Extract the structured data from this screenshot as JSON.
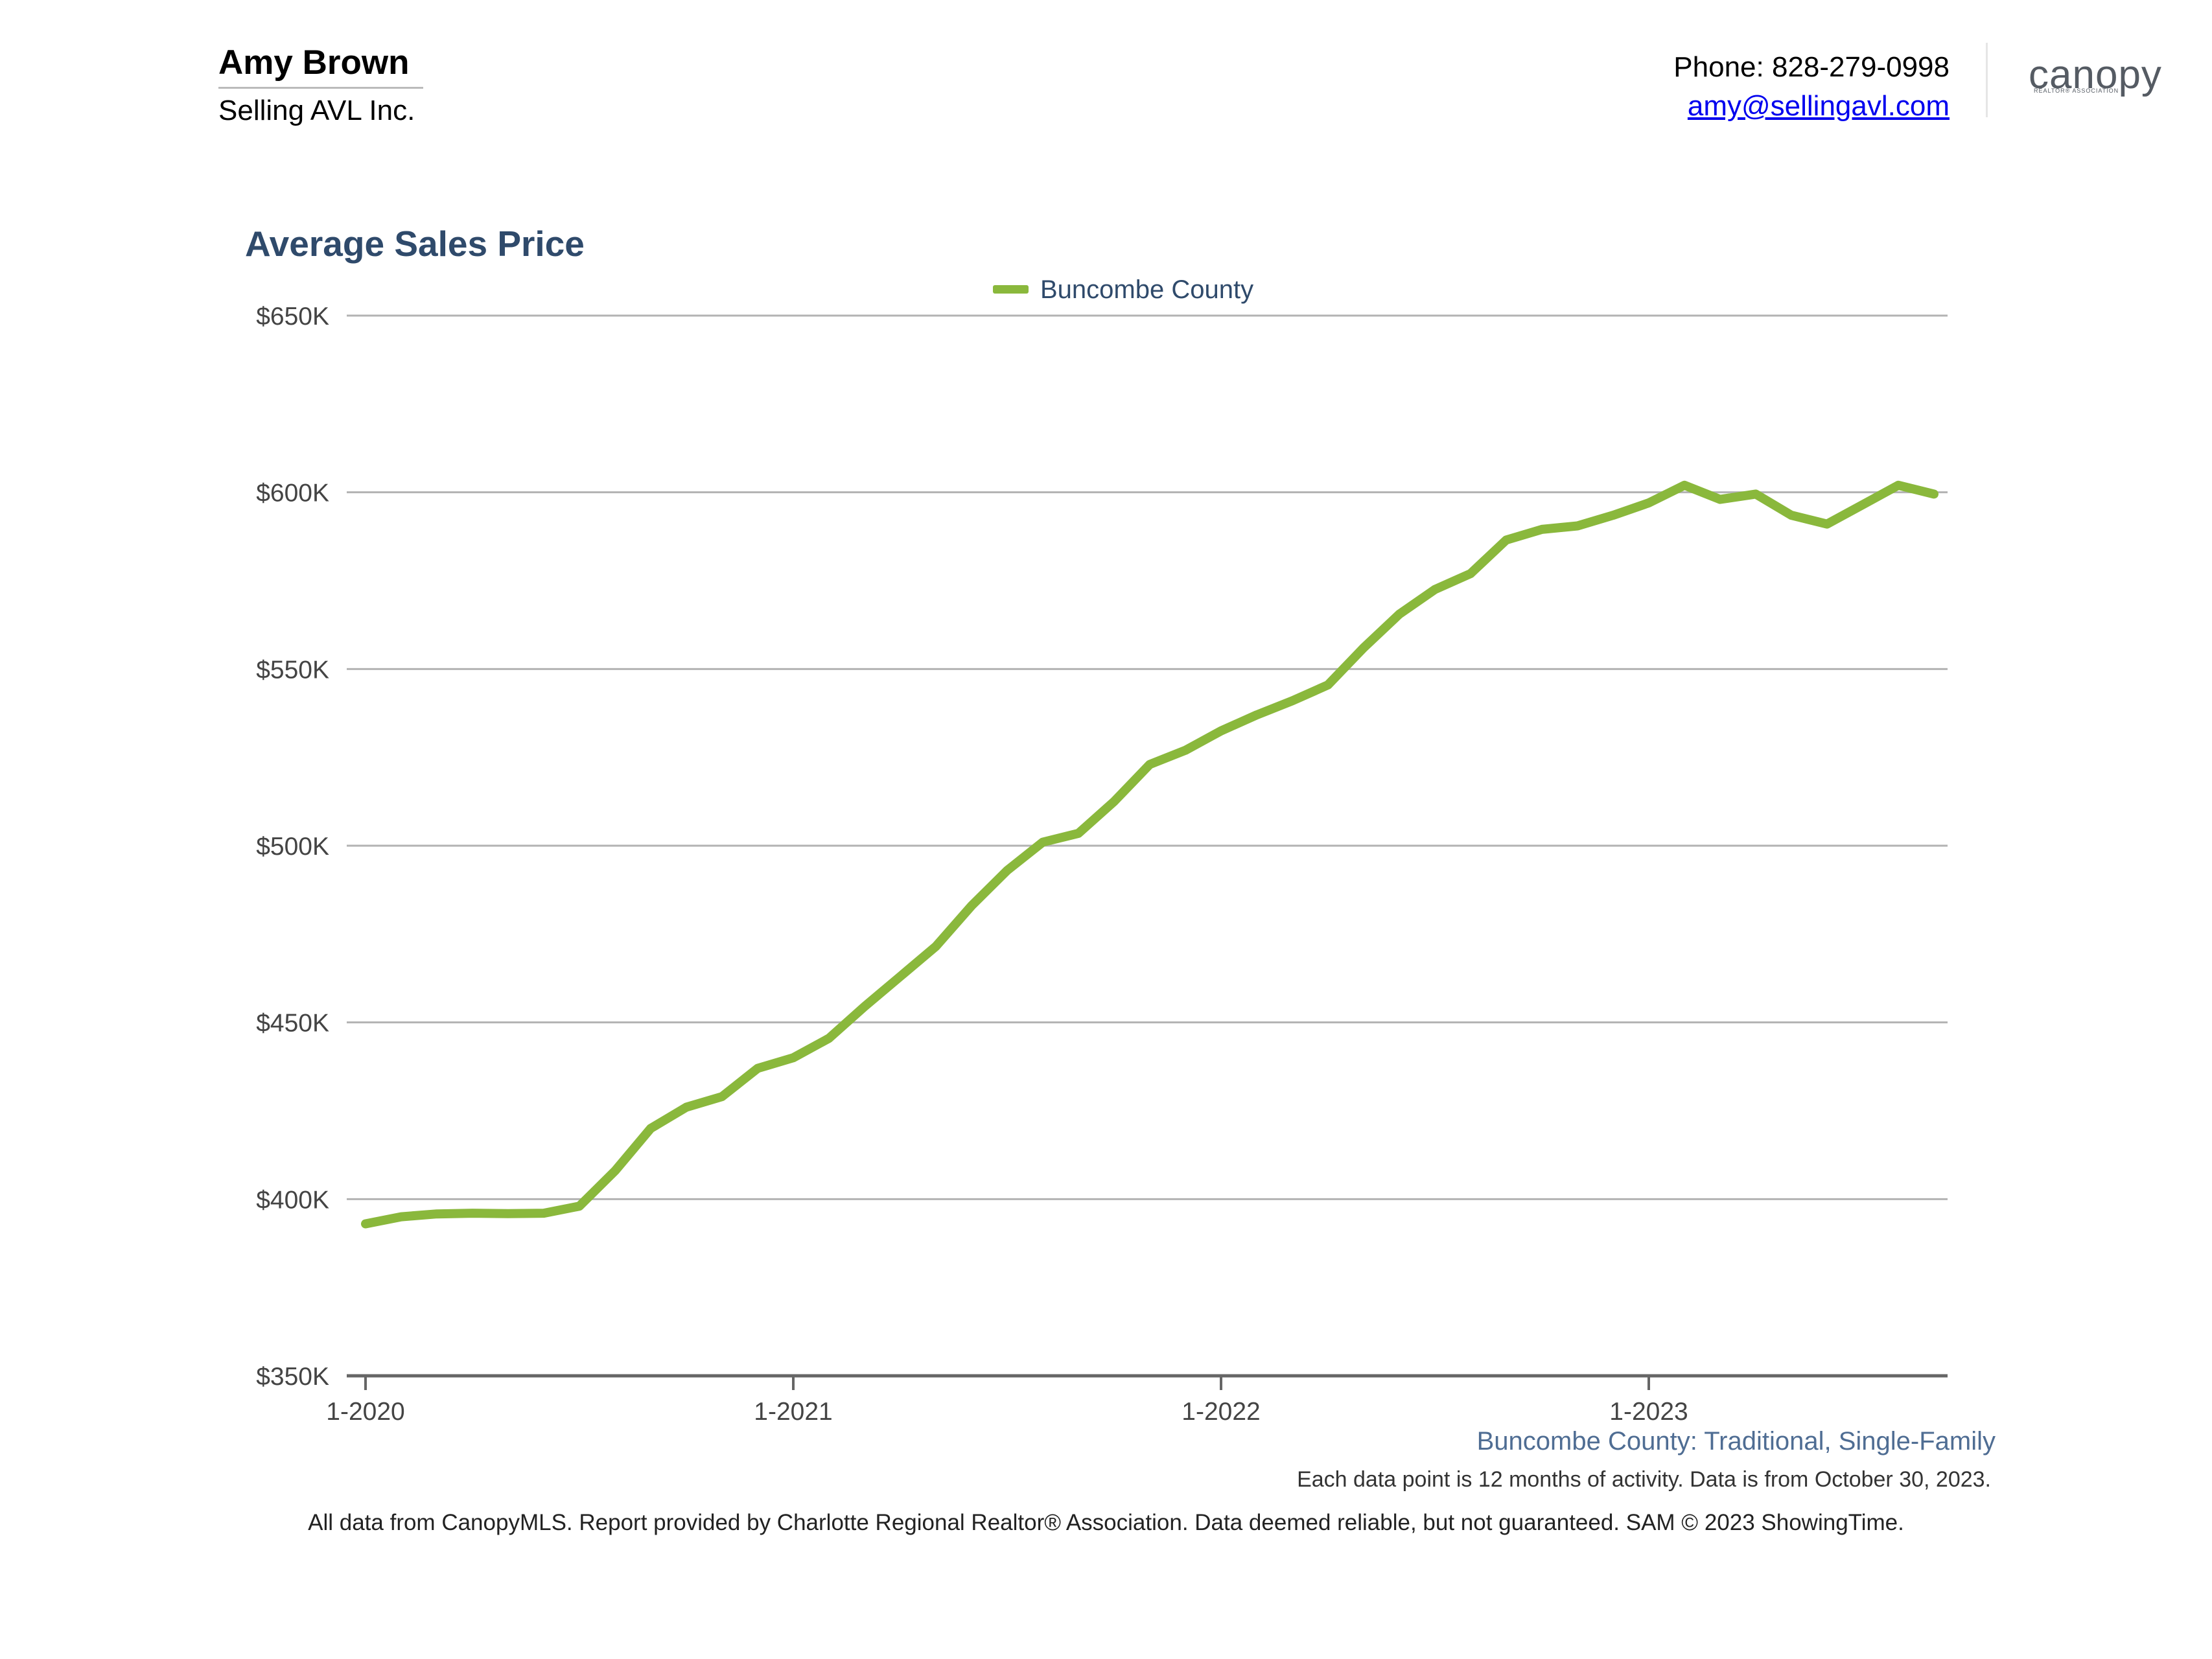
{
  "header": {
    "agent_name": "Amy Brown",
    "company": "Selling AVL Inc.",
    "phone": "Phone: 828-279-0998",
    "email": "amy@sellingavl.com",
    "logo_text": "canopy",
    "logo_subtext": "REALTOR® ASSOCIATION"
  },
  "chart_data": {
    "type": "line",
    "title": "Average Sales Price",
    "xlabel": "",
    "ylabel": "",
    "ylim": [
      350000,
      650000
    ],
    "y_ticks": [
      350000,
      400000,
      450000,
      500000,
      550000,
      600000,
      650000
    ],
    "y_tick_labels": [
      "$350K",
      "$400K",
      "$450K",
      "$500K",
      "$550K",
      "$600K",
      "$650K"
    ],
    "x_ticks": [
      "2020-01",
      "2021-01",
      "2022-01",
      "2023-01"
    ],
    "x_tick_labels": [
      "1-2020",
      "1-2021",
      "1-2022",
      "1-2023"
    ],
    "x": [
      "2020-01",
      "2020-02",
      "2020-03",
      "2020-04",
      "2020-05",
      "2020-06",
      "2020-07",
      "2020-08",
      "2020-09",
      "2020-10",
      "2020-11",
      "2020-12",
      "2021-01",
      "2021-02",
      "2021-03",
      "2021-04",
      "2021-05",
      "2021-06",
      "2021-07",
      "2021-08",
      "2021-09",
      "2021-10",
      "2021-11",
      "2021-12",
      "2022-01",
      "2022-02",
      "2022-03",
      "2022-04",
      "2022-05",
      "2022-06",
      "2022-07",
      "2022-08",
      "2022-09",
      "2022-10",
      "2022-11",
      "2022-12",
      "2023-01",
      "2023-02",
      "2023-03",
      "2023-04",
      "2023-05",
      "2023-06",
      "2023-07",
      "2023-08",
      "2023-09"
    ],
    "series": [
      {
        "name": "Buncombe County",
        "color": "#8ab83c",
        "values": [
          393000,
          395000,
          395800,
          396000,
          395900,
          396000,
          398000,
          408000,
          420000,
          426000,
          429000,
          437000,
          440000,
          445500,
          454500,
          463000,
          471500,
          483000,
          493000,
          501000,
          503500,
          512500,
          523000,
          527000,
          532500,
          537000,
          541000,
          545500,
          556000,
          565500,
          572500,
          577000,
          586500,
          589500,
          590500,
          593500,
          597000,
          602000,
          598000,
          599500,
          593500,
          591000,
          596500,
          602000,
          599500
        ]
      }
    ],
    "grid": true,
    "legend_position": "top-center"
  },
  "footer": {
    "series_note": "Buncombe County: Traditional, Single-Family",
    "period_note": "Each data point is 12 months of activity. Data is from October 30, 2023.",
    "disclaimer": "All data from CanopyMLS. Report provided by Charlotte Regional Realtor® Association. Data deemed reliable, but not guaranteed. SAM © 2023 ShowingTime."
  }
}
